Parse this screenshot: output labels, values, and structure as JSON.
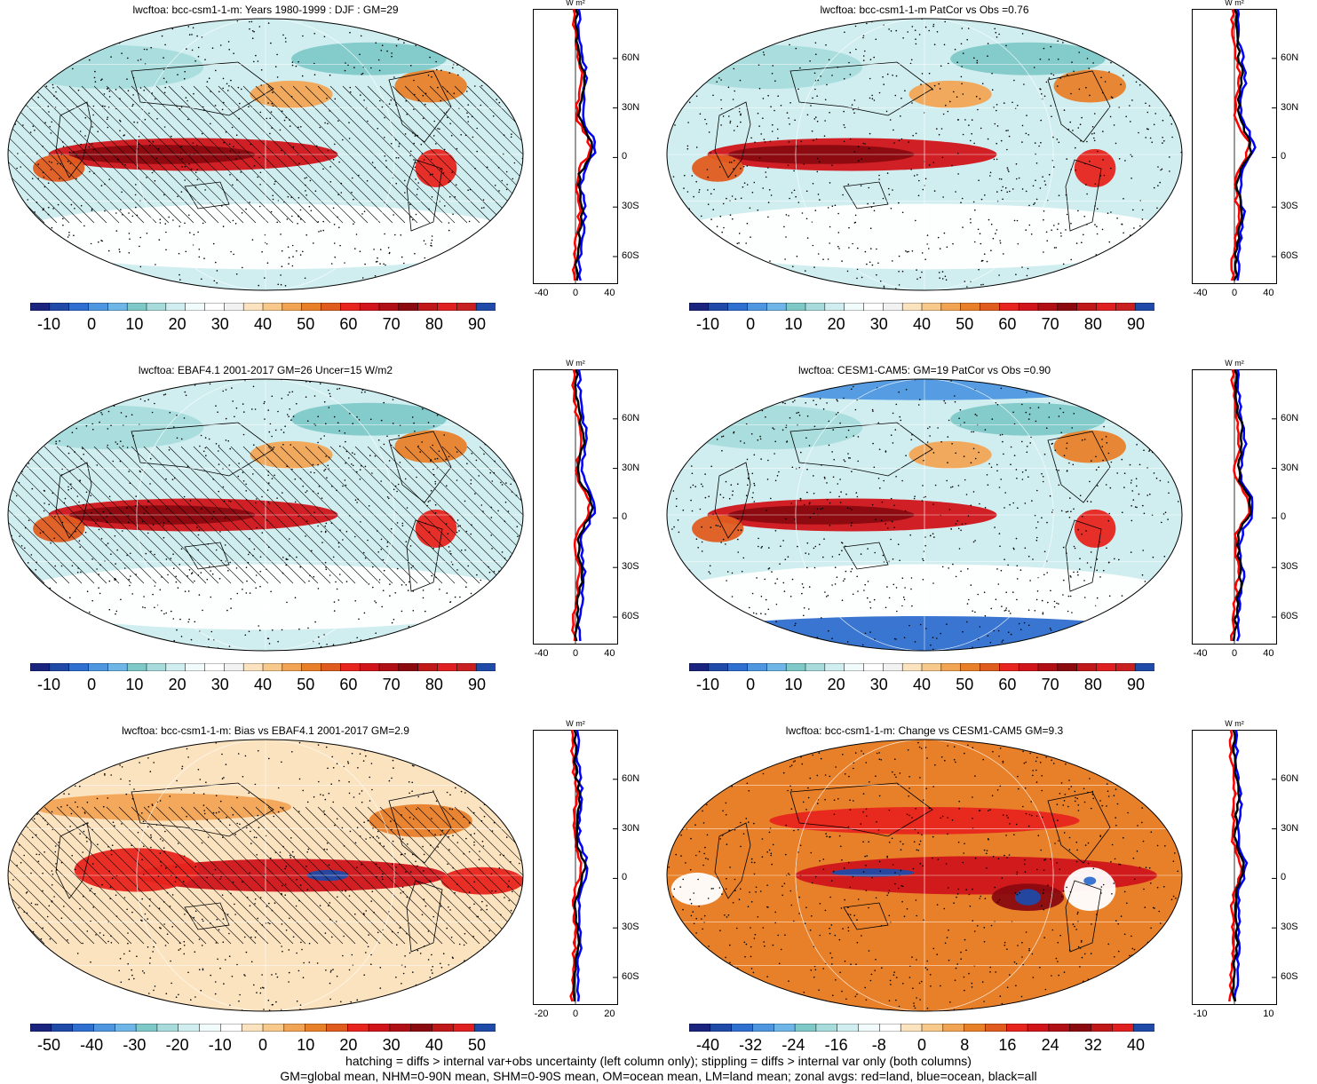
{
  "panels": [
    {
      "title": "lwcftoa: bcc-csm1-1-m: Years 1980-1999 : DJF : GM=29",
      "palette": "abs",
      "hatch": true,
      "cbar_labels": [
        "-10",
        "0",
        "10",
        "20",
        "30",
        "40",
        "50",
        "60",
        "70",
        "80",
        "90"
      ],
      "zonal": {
        "unit": "W m²",
        "xticks": [
          "-40",
          "0",
          "40"
        ],
        "lat_labels": [
          "60N",
          "30N",
          "0",
          "30S",
          "60S"
        ]
      }
    },
    {
      "title": "lwcftoa: bcc-csm1-1-m PatCor vs Obs =0.76",
      "palette": "abs",
      "hatch": false,
      "cbar_labels": [
        "-10",
        "0",
        "10",
        "20",
        "30",
        "40",
        "50",
        "60",
        "70",
        "80",
        "90"
      ],
      "zonal": {
        "unit": "W m²",
        "xticks": [
          "-40",
          "0",
          "40"
        ],
        "lat_labels": [
          "60N",
          "30N",
          "0",
          "30S",
          "60S"
        ]
      }
    },
    {
      "title": "lwcftoa: EBAF4.1 2001-2017 GM=26 Uncer=15 W/m2",
      "palette": "abs",
      "hatch": true,
      "cbar_labels": [
        "-10",
        "0",
        "10",
        "20",
        "30",
        "40",
        "50",
        "60",
        "70",
        "80",
        "90"
      ],
      "zonal": {
        "unit": "W m²",
        "xticks": [
          "-40",
          "0",
          "40"
        ],
        "lat_labels": [
          "60N",
          "30N",
          "0",
          "30S",
          "60S"
        ]
      }
    },
    {
      "title": "lwcftoa: CESM1-CAM5: GM=19 PatCor vs Obs =0.90",
      "palette": "abs",
      "hatch": false,
      "cbar_labels": [
        "-10",
        "0",
        "10",
        "20",
        "30",
        "40",
        "50",
        "60",
        "70",
        "80",
        "90"
      ],
      "zonal": {
        "unit": "W m²",
        "xticks": [
          "-40",
          "0",
          "40"
        ],
        "lat_labels": [
          "60N",
          "30N",
          "0",
          "30S",
          "60S"
        ]
      }
    },
    {
      "title": "lwcftoa: bcc-csm1-1-m: Bias vs EBAF4.1 2001-2017 GM=2.9",
      "palette": "diff",
      "hatch": true,
      "cbar_labels": [
        "-50",
        "-40",
        "-30",
        "-20",
        "-10",
        "0",
        "10",
        "20",
        "30",
        "40",
        "50"
      ],
      "zonal": {
        "unit": "W m²",
        "xticks": [
          "-20",
          "0",
          "20"
        ],
        "lat_labels": [
          "60N",
          "30N",
          "0",
          "30S",
          "60S"
        ]
      }
    },
    {
      "title": "lwcftoa: bcc-csm1-1-m: Change vs CESM1-CAM5 GM=9.3",
      "palette": "diff",
      "hatch": false,
      "cbar_labels": [
        "-40",
        "-32",
        "-24",
        "-16",
        "-8",
        "0",
        "8",
        "16",
        "24",
        "32",
        "40"
      ],
      "zonal": {
        "unit": "W m²",
        "xticks": [
          "-10",
          "10"
        ],
        "lat_labels": [
          "60N",
          "30N",
          "0",
          "30S",
          "60S"
        ]
      }
    }
  ],
  "colors": {
    "abs_palette": [
      "#1a237e",
      "#1f4aa8",
      "#2f6fcf",
      "#4e97e0",
      "#6fb6e8",
      "#7fc8c8",
      "#a8dcdc",
      "#d0eef0",
      "#f2fbfb",
      "#ffffff",
      "#f2f2f2",
      "#fbe3c0",
      "#f7c98a",
      "#f2a455",
      "#e8802a",
      "#e05c1e",
      "#e8241e",
      "#d0141a",
      "#b01015",
      "#8a0a10",
      "#c01818",
      "#e02020",
      "#c82020",
      "#1f4aa8"
    ],
    "diff_palette": [
      "#1a237e",
      "#1f4aa8",
      "#2f6fcf",
      "#4e97e0",
      "#6fb6e8",
      "#7fc8c8",
      "#a8dcdc",
      "#d0eef0",
      "#f2fbfb",
      "#ffffff",
      "#fbe3c0",
      "#f7c98a",
      "#f2a455",
      "#e8802a",
      "#e05c1e",
      "#e8241e",
      "#d0141a",
      "#b01015",
      "#8a0a10",
      "#c01818",
      "#e02020",
      "#1f4aa8"
    ],
    "zonal_land": "#ff0000",
    "zonal_ocean": "#0000ff",
    "zonal_all": "#000000"
  },
  "footnote": {
    "line1": "hatching = diffs > internal var+obs uncertainty (left column only); stippling = diffs > internal var only (both columns)",
    "line2": "GM=global mean, NHM=0-90N mean, SHM=0-90S mean, OM=ocean mean, LM=land mean; zonal avgs: red=land, blue=ocean, black=all"
  }
}
